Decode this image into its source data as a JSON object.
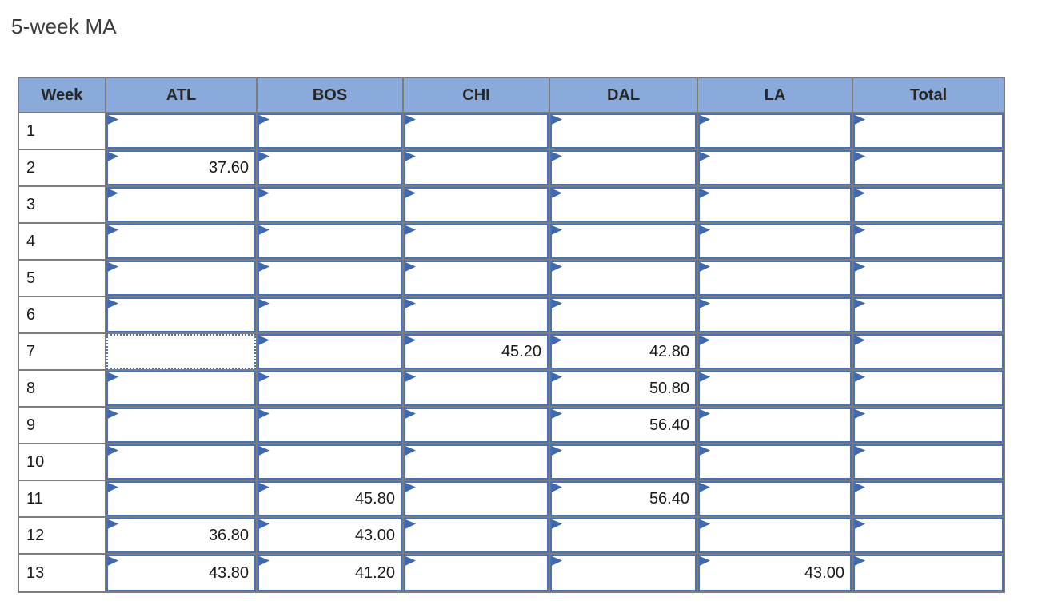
{
  "page": {
    "title": "5-week MA"
  },
  "table": {
    "columns": [
      {
        "label": "Week"
      },
      {
        "label": "ATL"
      },
      {
        "label": "BOS"
      },
      {
        "label": "CHI"
      },
      {
        "label": "DAL"
      },
      {
        "label": "LA"
      },
      {
        "label": "Total"
      }
    ],
    "rows": [
      {
        "week": "1",
        "cells": [
          "",
          "",
          "",
          "",
          "",
          ""
        ]
      },
      {
        "week": "2",
        "cells": [
          "37.60",
          "",
          "",
          "",
          "",
          ""
        ]
      },
      {
        "week": "3",
        "cells": [
          "",
          "",
          "",
          "",
          "",
          ""
        ]
      },
      {
        "week": "4",
        "cells": [
          "",
          "",
          "",
          "",
          "",
          ""
        ]
      },
      {
        "week": "5",
        "cells": [
          "",
          "",
          "",
          "",
          "",
          ""
        ]
      },
      {
        "week": "6",
        "cells": [
          "",
          "",
          "",
          "",
          "",
          ""
        ]
      },
      {
        "week": "7",
        "cells": [
          "",
          "",
          "45.20",
          "42.80",
          "",
          ""
        ]
      },
      {
        "week": "8",
        "cells": [
          "",
          "",
          "",
          "50.80",
          "",
          ""
        ]
      },
      {
        "week": "9",
        "cells": [
          "",
          "",
          "",
          "56.40",
          "",
          ""
        ]
      },
      {
        "week": "10",
        "cells": [
          "",
          "",
          "",
          "",
          "",
          ""
        ]
      },
      {
        "week": "11",
        "cells": [
          "",
          "45.80",
          "",
          "56.40",
          "",
          ""
        ]
      },
      {
        "week": "12",
        "cells": [
          "36.80",
          "43.00",
          "",
          "",
          "",
          ""
        ]
      },
      {
        "week": "13",
        "cells": [
          "43.80",
          "41.20",
          "",
          "",
          "43.00",
          ""
        ]
      }
    ],
    "selected_cell": {
      "row_week": "7",
      "column": "ATL"
    },
    "colors": {
      "header_bg": "#89aadb",
      "grid_border": "#7d7d7d",
      "input_border": "#4a71b6",
      "flag": "#3e68b0",
      "selected_border": "#4573c4"
    }
  }
}
